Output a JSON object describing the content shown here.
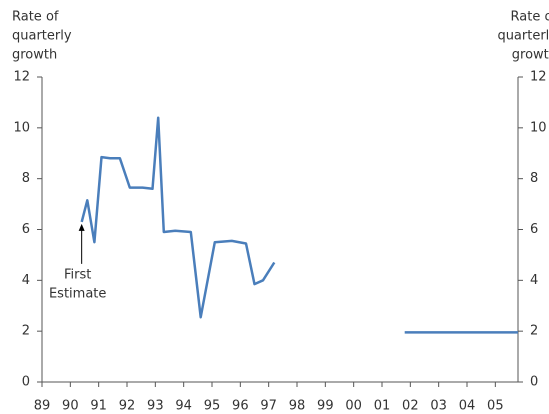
{
  "chart_data": {
    "type": "line",
    "y_label": [
      "Rate of",
      "quarterly",
      "growth"
    ],
    "y2_label": [
      "Rate of",
      "quarterly",
      "growth"
    ],
    "annotation": {
      "lines": [
        "First",
        "Estimate"
      ],
      "x": 1990.4,
      "y": 6.3
    },
    "xlim": [
      1989,
      2005.8
    ],
    "xticks": [
      {
        "value": 1989,
        "label": "89"
      },
      {
        "value": 1990,
        "label": "90"
      },
      {
        "value": 1991,
        "label": "91"
      },
      {
        "value": 1992,
        "label": "92"
      },
      {
        "value": 1993,
        "label": "93"
      },
      {
        "value": 1994,
        "label": "94"
      },
      {
        "value": 1995,
        "label": "95"
      },
      {
        "value": 1996,
        "label": "96"
      },
      {
        "value": 1997,
        "label": "97"
      },
      {
        "value": 1998,
        "label": "98"
      },
      {
        "value": 1999,
        "label": "99"
      },
      {
        "value": 2000,
        "label": "00"
      },
      {
        "value": 2001,
        "label": "01"
      },
      {
        "value": 2002,
        "label": "02"
      },
      {
        "value": 2003,
        "label": "03"
      },
      {
        "value": 2004,
        "label": "04"
      },
      {
        "value": 2005,
        "label": "05"
      }
    ],
    "ylim": [
      0,
      12
    ],
    "yticks": [
      0,
      2,
      4,
      6,
      8,
      10,
      12
    ],
    "y2lim": [
      0,
      12
    ],
    "y2ticks": [
      0,
      2,
      4,
      6,
      8,
      10,
      12
    ],
    "series": [
      {
        "color": "#4a7ebb",
        "x": [
          1990.4,
          1990.6,
          1990.85,
          1991.1,
          1991.4,
          1991.75,
          1992.1,
          1992.55,
          1992.9,
          1993.1,
          1993.3,
          1993.7,
          1994.25,
          1994.6,
          1995.1,
          1995.7,
          1996.2,
          1996.5,
          1996.8,
          1997.2
        ],
        "values": [
          6.3,
          7.15,
          5.5,
          8.85,
          8.8,
          8.8,
          7.65,
          7.65,
          7.6,
          10.4,
          5.9,
          5.95,
          5.9,
          2.55,
          5.5,
          5.55,
          5.45,
          3.85,
          4.0,
          4.7
        ]
      },
      {
        "color": "#4a7ebb",
        "x": [
          2001.8,
          2005.8
        ],
        "values": [
          1.95,
          1.95
        ]
      }
    ]
  }
}
